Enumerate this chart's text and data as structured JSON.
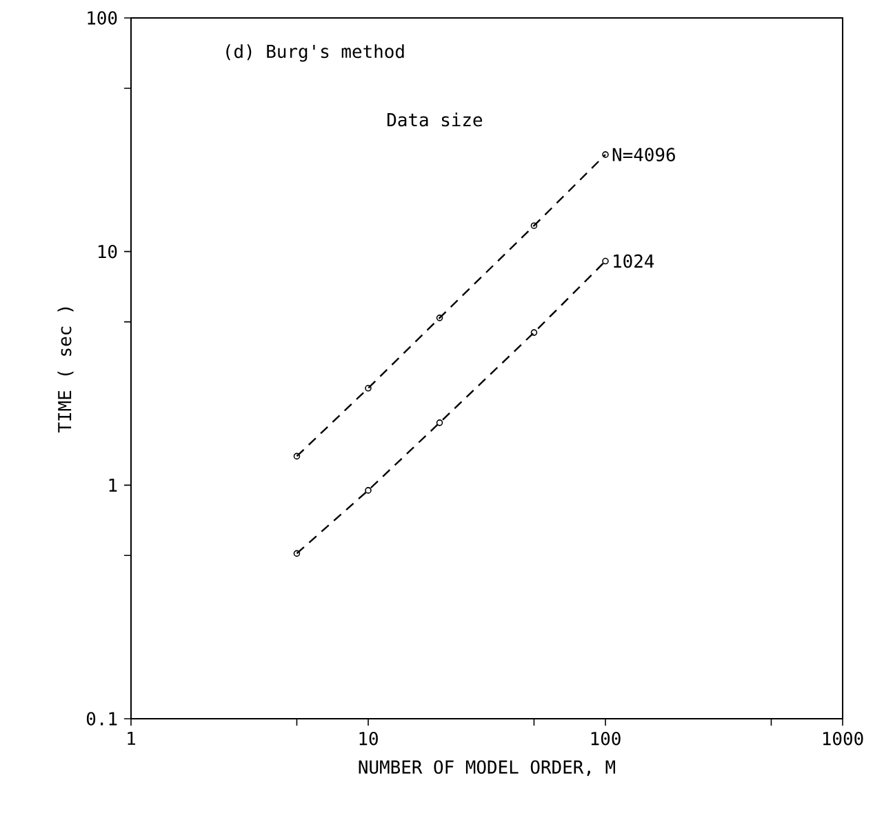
{
  "chart_data": {
    "type": "line",
    "xlabel": "NUMBER OF MODEL ORDER, M",
    "ylabel": "TIME ( sec )",
    "annotations": [
      "(d)  Burg's method",
      "Data size"
    ],
    "x": [
      5,
      10,
      20,
      50,
      100
    ],
    "series": [
      {
        "name": "N=4096",
        "color": "#000000",
        "values": [
          1.33,
          2.6,
          5.2,
          12.9,
          26
        ]
      },
      {
        "name": "1024",
        "color": "#000000",
        "values": [
          0.51,
          0.95,
          1.85,
          4.5,
          9.1
        ]
      }
    ],
    "log": "xy",
    "marker": "circle",
    "line_style": "dashed",
    "xlim": [
      1,
      1000
    ],
    "ylim": [
      0.1,
      100
    ],
    "xticks": [
      1,
      10,
      100,
      1000,
      {
        "value": 5,
        "label": null
      },
      {
        "value": 50,
        "label": null
      },
      {
        "value": 500,
        "label": null
      }
    ],
    "yticks": [
      0.1,
      1,
      10,
      100,
      {
        "value": 0.5,
        "label": null
      },
      {
        "value": 5,
        "label": null
      },
      {
        "value": 50,
        "label": null
      }
    ]
  }
}
